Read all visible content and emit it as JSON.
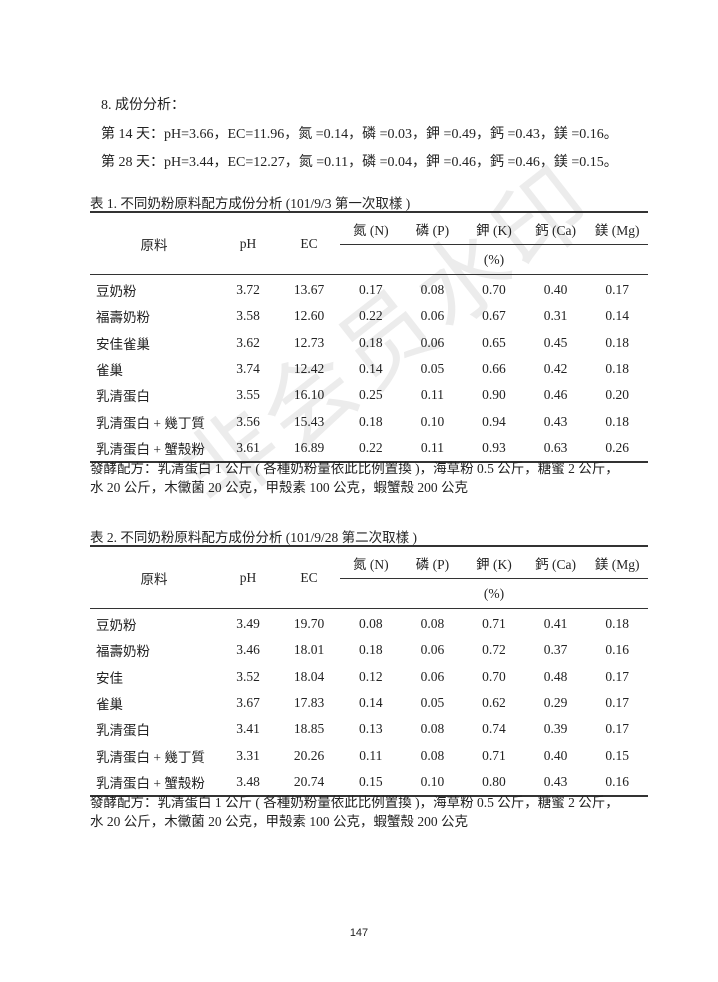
{
  "section": {
    "heading": "8. 成份分析：",
    "day14": "第 14 天：pH=3.66，EC=11.96，氮 =0.14，磷 =0.03，鉀 =0.49，鈣 =0.43，鎂 =0.16。",
    "day28": "第 28 天：pH=3.44，EC=12.27，氮 =0.11，磷 =0.04，鉀 =0.46，鈣 =0.46，鎂 =0.15。"
  },
  "headers": {
    "material": "原料",
    "ph": "pH",
    "ec": "EC",
    "n": "氮 (N)",
    "p": "磷 (P)",
    "k": "鉀 (K)",
    "ca": "鈣 (Ca)",
    "mg": "鎂 (Mg)",
    "unit": "(%)"
  },
  "tables": [
    {
      "caption": "表 1. 不同奶粉原料配方成份分析 (101/9/3 第一次取樣 )",
      "rows": [
        [
          "豆奶粉",
          "3.72",
          "13.67",
          "0.17",
          "0.08",
          "0.70",
          "0.40",
          "0.17"
        ],
        [
          "福壽奶粉",
          "3.58",
          "12.60",
          "0.22",
          "0.06",
          "0.67",
          "0.31",
          "0.14"
        ],
        [
          "安佳雀巢",
          "3.62",
          "12.73",
          "0.18",
          "0.06",
          "0.65",
          "0.45",
          "0.18"
        ],
        [
          "雀巢",
          "3.74",
          "12.42",
          "0.14",
          "0.05",
          "0.66",
          "0.42",
          "0.18"
        ],
        [
          "乳清蛋白",
          "3.55",
          "16.10",
          "0.25",
          "0.11",
          "0.90",
          "0.46",
          "0.20"
        ],
        [
          "乳清蛋白 + 幾丁質",
          "3.56",
          "15.43",
          "0.18",
          "0.10",
          "0.94",
          "0.43",
          "0.18"
        ],
        [
          "乳清蛋白 + 蟹殼粉",
          "3.61",
          "16.89",
          "0.22",
          "0.11",
          "0.93",
          "0.63",
          "0.26"
        ]
      ],
      "note_line1": "發酵配方：乳清蛋白 1 公斤 ( 各種奶粉量依此比例置換 )，海草粉 0.5 公斤，糖蜜 2 公斤，",
      "note_line2": "水 20 公斤，木黴菌 20 公克，甲殼素 100 公克，蝦蟹殼 200 公克"
    },
    {
      "caption": "表 2. 不同奶粉原料配方成份分析 (101/9/28 第二次取樣 )",
      "rows": [
        [
          "豆奶粉",
          "3.49",
          "19.70",
          "0.08",
          "0.08",
          "0.71",
          "0.41",
          "0.18"
        ],
        [
          "福壽奶粉",
          "3.46",
          "18.01",
          "0.18",
          "0.06",
          "0.72",
          "0.37",
          "0.16"
        ],
        [
          "安佳",
          "3.52",
          "18.04",
          "0.12",
          "0.06",
          "0.70",
          "0.48",
          "0.17"
        ],
        [
          "雀巢",
          "3.67",
          "17.83",
          "0.14",
          "0.05",
          "0.62",
          "0.29",
          "0.17"
        ],
        [
          "乳清蛋白",
          "3.41",
          "18.85",
          "0.13",
          "0.08",
          "0.74",
          "0.39",
          "0.17"
        ],
        [
          "乳清蛋白 + 幾丁質",
          "3.31",
          "20.26",
          "0.11",
          "0.08",
          "0.71",
          "0.40",
          "0.15"
        ],
        [
          "乳清蛋白 + 蟹殼粉",
          "3.48",
          "20.74",
          "0.15",
          "0.10",
          "0.80",
          "0.43",
          "0.16"
        ]
      ],
      "note_line1": "發酵配方：乳清蛋白 1 公斤 ( 各種奶粉量依此比例置換 )，海草粉 0.5 公斤，糖蜜 2 公斤，",
      "note_line2": "水 20 公斤，木黴菌 20 公克，甲殼素 100 公克，蝦蟹殼 200 公克"
    }
  ],
  "watermark": "非会员水印",
  "page_number": "147"
}
